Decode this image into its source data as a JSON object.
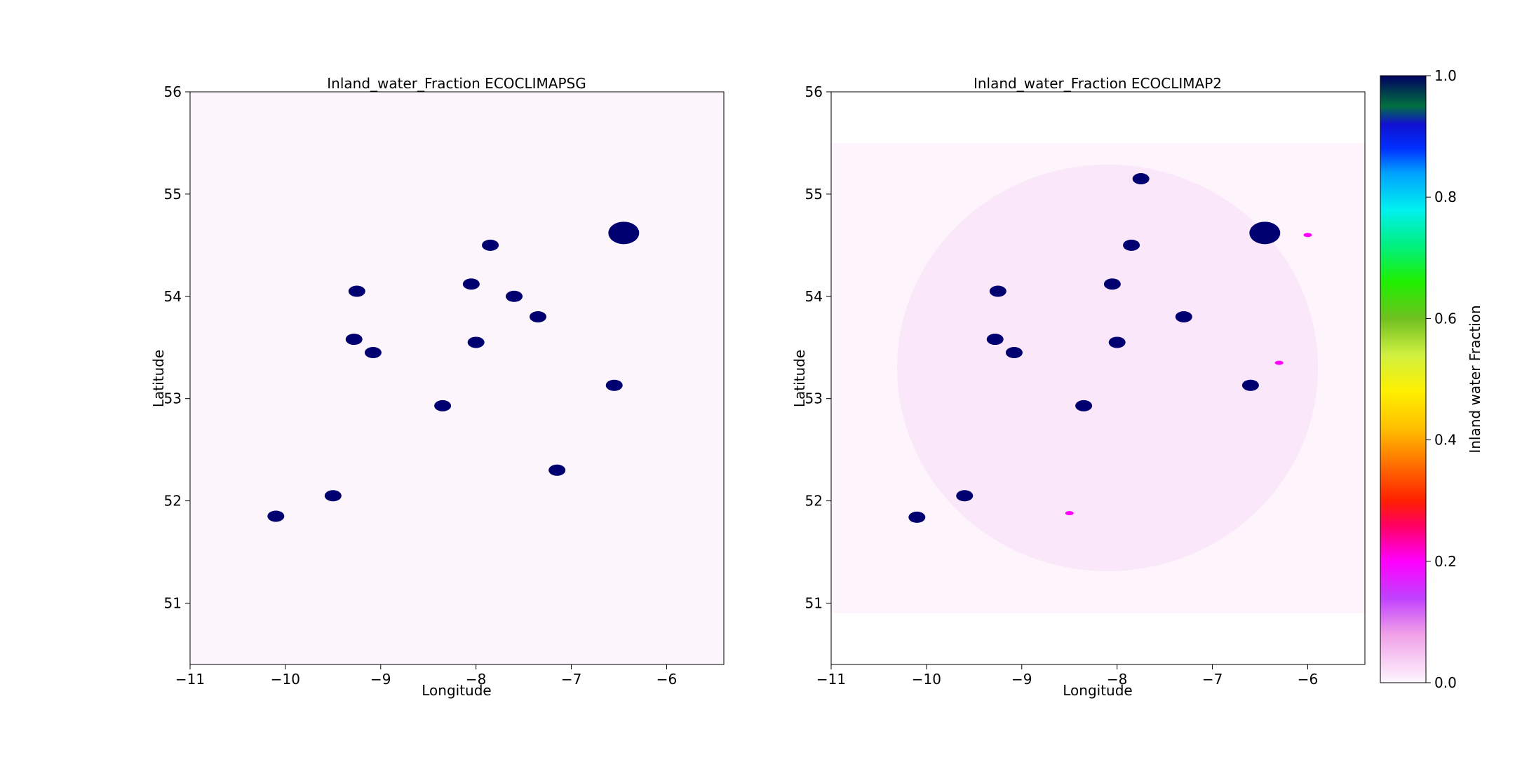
{
  "figure": {
    "colorbar": {
      "label": "Inland water Fraction",
      "ticks": [
        "0.0",
        "0.2",
        "0.4",
        "0.6",
        "0.8",
        "1.0"
      ],
      "colormap": "gist_ncar_r"
    }
  },
  "chart_data": [
    {
      "type": "heatmap",
      "title": "Inland_water_Fraction ECOCLIMAPSG",
      "xlabel": "Longitude",
      "ylabel": "Latitude",
      "xlim": [
        -11.0,
        -5.4
      ],
      "ylim": [
        50.4,
        56.0
      ],
      "x_ticks": [
        "−11",
        "−10",
        "−9",
        "−8",
        "−7",
        "−6"
      ],
      "y_ticks": [
        "51",
        "52",
        "53",
        "54",
        "55",
        "56"
      ],
      "data_extent": {
        "lon": [
          -11.0,
          -5.4
        ],
        "lat": [
          50.4,
          56.0
        ]
      },
      "background_value": 0.0,
      "water_bodies": [
        {
          "lon": -6.45,
          "lat": 54.62,
          "value": 1.0
        },
        {
          "lon": -7.85,
          "lat": 54.5,
          "value": 1.0
        },
        {
          "lon": -9.28,
          "lat": 53.58,
          "value": 1.0
        },
        {
          "lon": -9.08,
          "lat": 53.45,
          "value": 1.0
        },
        {
          "lon": -8.0,
          "lat": 53.55,
          "value": 1.0
        },
        {
          "lon": -8.35,
          "lat": 52.93,
          "value": 1.0
        },
        {
          "lon": -9.25,
          "lat": 54.05,
          "value": 1.0
        },
        {
          "lon": -8.05,
          "lat": 54.12,
          "value": 1.0
        },
        {
          "lon": -7.15,
          "lat": 52.3,
          "value": 1.0
        },
        {
          "lon": -9.5,
          "lat": 52.05,
          "value": 1.0
        },
        {
          "lon": -10.1,
          "lat": 51.85,
          "value": 1.0
        },
        {
          "lon": -6.55,
          "lat": 53.13,
          "value": 1.0
        },
        {
          "lon": -7.35,
          "lat": 53.8,
          "value": 1.0
        },
        {
          "lon": -7.6,
          "lat": 54.0,
          "value": 1.0
        }
      ]
    },
    {
      "type": "heatmap",
      "title": "Inland_water_Fraction ECOCLIMAP2",
      "xlabel": "Longitude",
      "ylabel": "Latitude",
      "xlim": [
        -11.0,
        -5.4
      ],
      "ylim": [
        50.4,
        56.0
      ],
      "x_ticks": [
        "−11",
        "−10",
        "−9",
        "−8",
        "−7",
        "−6"
      ],
      "y_ticks": [
        "51",
        "52",
        "53",
        "54",
        "55",
        "56"
      ],
      "data_extent": {
        "lon": [
          -11.0,
          -5.4
        ],
        "lat": [
          50.9,
          55.5
        ]
      },
      "background_value": 0.0,
      "land_value": 0.03,
      "water_bodies": [
        {
          "lon": -6.45,
          "lat": 54.62,
          "value": 1.0
        },
        {
          "lon": -7.85,
          "lat": 54.5,
          "value": 1.0
        },
        {
          "lon": -9.28,
          "lat": 53.58,
          "value": 1.0
        },
        {
          "lon": -9.08,
          "lat": 53.45,
          "value": 1.0
        },
        {
          "lon": -8.0,
          "lat": 53.55,
          "value": 1.0
        },
        {
          "lon": -8.35,
          "lat": 52.93,
          "value": 1.0
        },
        {
          "lon": -9.25,
          "lat": 54.05,
          "value": 1.0
        },
        {
          "lon": -8.05,
          "lat": 54.12,
          "value": 1.0
        },
        {
          "lon": -9.6,
          "lat": 52.05,
          "value": 1.0
        },
        {
          "lon": -10.1,
          "lat": 51.84,
          "value": 1.0
        },
        {
          "lon": -6.6,
          "lat": 53.13,
          "value": 1.0
        },
        {
          "lon": -7.3,
          "lat": 53.8,
          "value": 1.0
        },
        {
          "lon": -7.75,
          "lat": 55.15,
          "value": 1.0
        },
        {
          "lon": -6.0,
          "lat": 54.6,
          "value": 0.2
        },
        {
          "lon": -6.3,
          "lat": 53.35,
          "value": 0.2
        },
        {
          "lon": -8.5,
          "lat": 51.88,
          "value": 0.2
        }
      ]
    }
  ]
}
